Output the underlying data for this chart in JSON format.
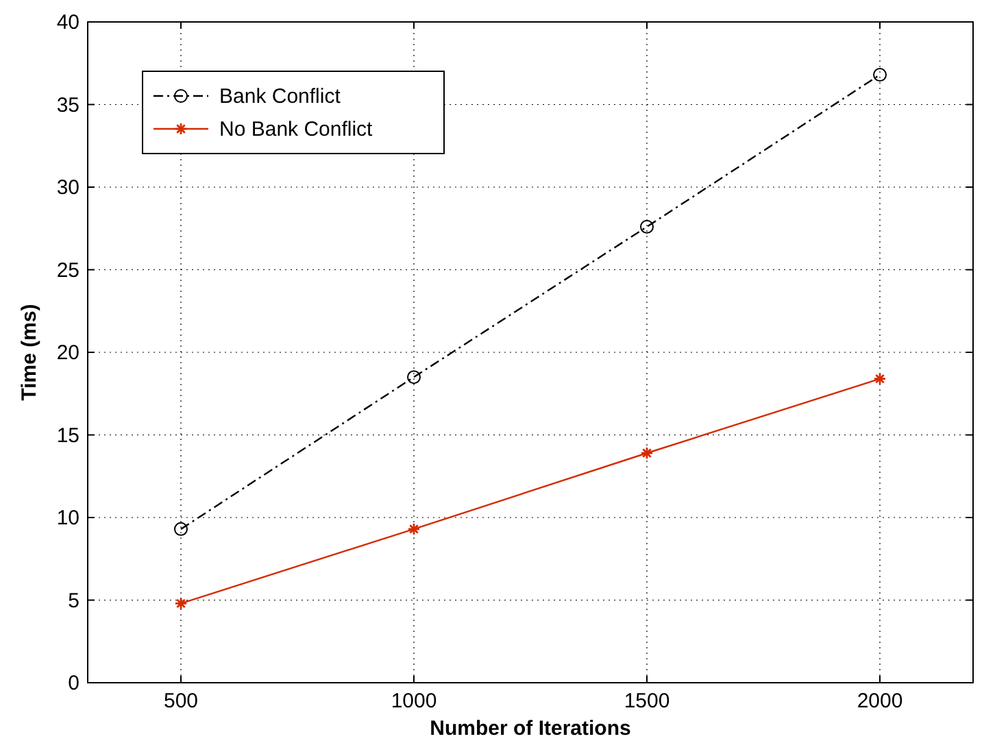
{
  "chart_data": {
    "type": "line",
    "xlabel": "Number of Iterations",
    "ylabel": "Time (ms)",
    "x": [
      500,
      1000,
      1500,
      2000
    ],
    "series": [
      {
        "name": "Bank Conflict",
        "color": "#000000",
        "values": [
          9.3,
          18.5,
          27.6,
          36.8
        ],
        "marker": "circle",
        "line_style": "dashed"
      },
      {
        "name": "No Bank Conflict",
        "color": "#d62b00",
        "values": [
          4.8,
          9.3,
          13.9,
          18.4
        ],
        "marker": "cross",
        "line_style": "solid"
      }
    ],
    "xlim": [
      300,
      2200
    ],
    "xticks": [
      500,
      1000,
      1500,
      2000
    ],
    "ylim": [
      0,
      40
    ],
    "yticks": [
      0,
      5,
      10,
      15,
      20,
      25,
      30,
      35,
      40
    ],
    "grid": true,
    "legend": "top left"
  }
}
